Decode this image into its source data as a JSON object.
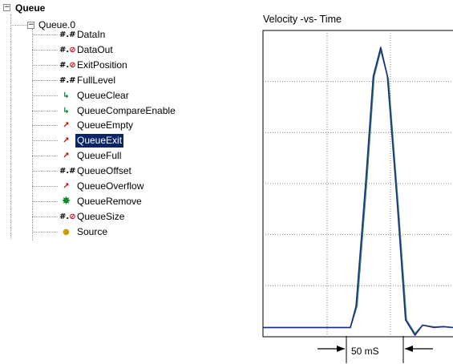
{
  "tree": {
    "root": {
      "label": "Queue",
      "icon": "collapse-minus-icon"
    },
    "child": {
      "label": "Queue.0",
      "icon": "collapse-minus-icon"
    },
    "items": [
      {
        "label": "DataIn",
        "icon": "numeric-tag-icon",
        "selected": false
      },
      {
        "label": "DataOut",
        "icon": "numeric-tag-noaccess-icon",
        "selected": false
      },
      {
        "label": "ExitPosition",
        "icon": "numeric-tag-noaccess-icon",
        "selected": false
      },
      {
        "label": "FullLevel",
        "icon": "numeric-tag-icon",
        "selected": false
      },
      {
        "label": "QueueClear",
        "icon": "pulse-command-icon",
        "selected": false
      },
      {
        "label": "QueueCompareEnable",
        "icon": "pulse-command-icon",
        "selected": false
      },
      {
        "label": "QueueEmpty",
        "icon": "status-bit-icon",
        "selected": false
      },
      {
        "label": "QueueExit",
        "icon": "status-bit-icon",
        "selected": true
      },
      {
        "label": "QueueFull",
        "icon": "status-bit-icon",
        "selected": false
      },
      {
        "label": "QueueOffset",
        "icon": "numeric-tag-icon",
        "selected": false
      },
      {
        "label": "QueueOverflow",
        "icon": "status-bit-icon",
        "selected": false
      },
      {
        "label": "QueueRemove",
        "icon": "action-star-icon",
        "selected": false
      },
      {
        "label": "QueueSize",
        "icon": "numeric-tag-noaccess-icon",
        "selected": false
      },
      {
        "label": "Source",
        "icon": "source-pointer-icon",
        "selected": false
      }
    ]
  },
  "colors": {
    "selection": "#0a246a",
    "trace_primary": "#1e2a8c",
    "trace_secondary": "#2e8b57",
    "grid": "#888888"
  },
  "chart_data": {
    "type": "line",
    "title": "Velocity -vs- Time",
    "xlabel": "",
    "ylabel": "",
    "grid": true,
    "xlim": [
      0,
      10
    ],
    "ylim": [
      0,
      10
    ],
    "grid_divisions": {
      "x": 3,
      "y": 6
    },
    "annotation": "50 mS",
    "series": [
      {
        "color": "#1e2a8c",
        "x": [
          0,
          4.6,
          4.9,
          5.4,
          5.8,
          6.2,
          6.55,
          7.05,
          7.5,
          8.0,
          8.4,
          9.0,
          9.5,
          10
        ],
        "y": [
          0.3,
          0.3,
          1.0,
          5.0,
          8.5,
          9.45,
          8.5,
          4.5,
          0.55,
          0.05,
          0.38,
          0.3,
          0.33,
          0.3
        ]
      },
      {
        "color": "#2e8b57",
        "x": [
          0,
          4.6,
          4.95,
          5.45,
          5.85,
          6.2,
          6.6,
          7.1,
          7.55,
          8.0,
          8.4,
          9.0,
          9.5,
          10
        ],
        "y": [
          0.3,
          0.3,
          1.0,
          5.0,
          8.5,
          9.35,
          8.4,
          4.4,
          0.55,
          0.1,
          0.38,
          0.32,
          0.33,
          0.3
        ]
      }
    ]
  }
}
